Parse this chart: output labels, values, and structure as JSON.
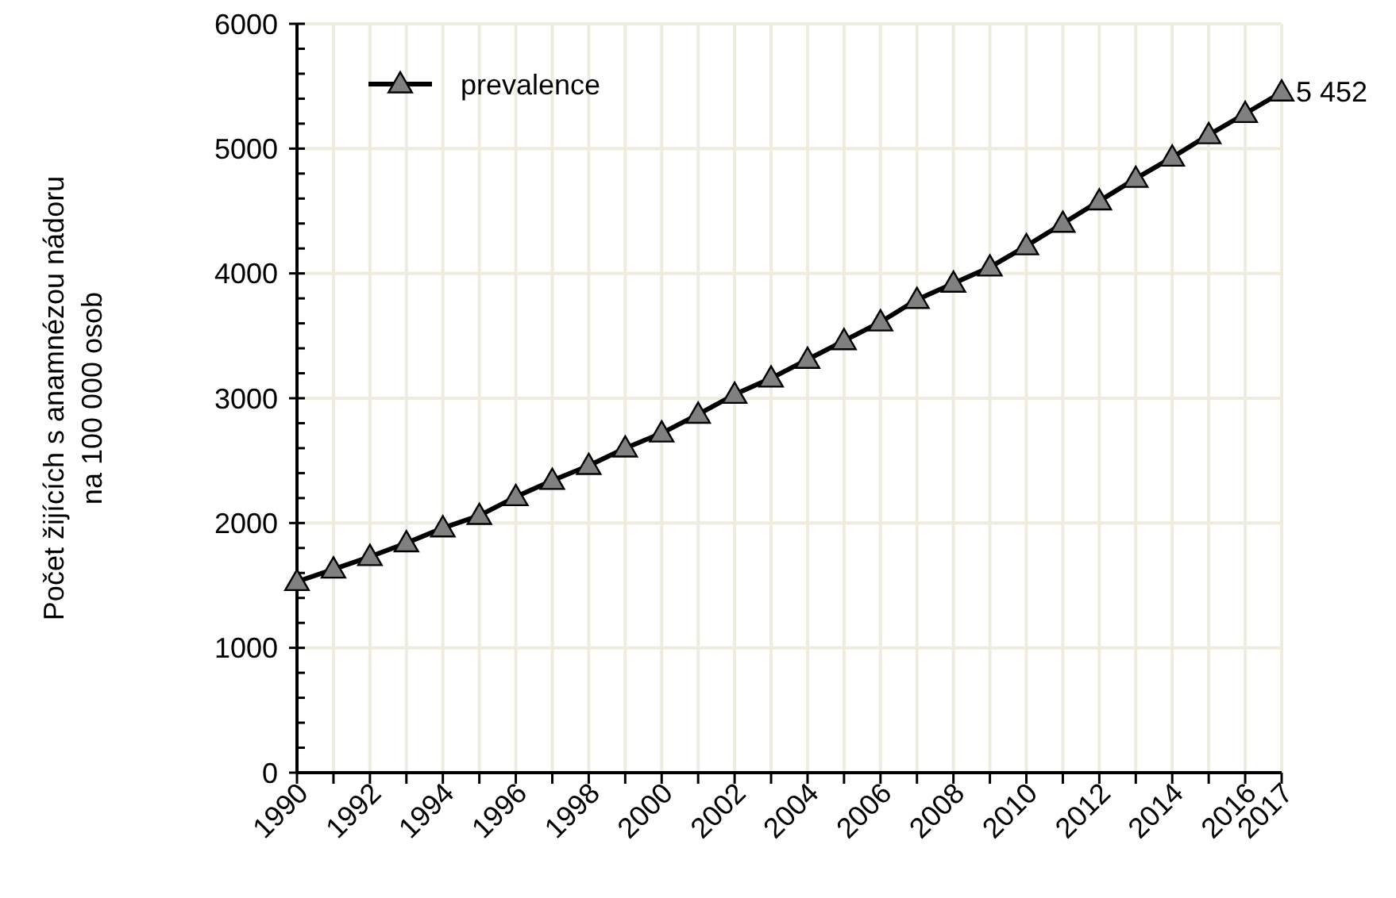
{
  "chart_data": {
    "type": "line",
    "ylabel": "Počet žijících s anamnézou nádoru\nna 100 000 osob",
    "x": [
      1990,
      1991,
      1992,
      1993,
      1994,
      1995,
      1996,
      1997,
      1998,
      1999,
      2000,
      2001,
      2002,
      2003,
      2004,
      2005,
      2006,
      2007,
      2008,
      2009,
      2010,
      2011,
      2012,
      2013,
      2014,
      2015,
      2016,
      2017
    ],
    "series": [
      {
        "name": "prevalence",
        "color": "#000000",
        "values": [
          1530,
          1630,
          1730,
          1840,
          1960,
          2060,
          2210,
          2340,
          2460,
          2600,
          2720,
          2870,
          3030,
          3160,
          3310,
          3460,
          3610,
          3790,
          3920,
          4050,
          4220,
          4400,
          4580,
          4760,
          4930,
          5110,
          5280,
          5452
        ],
        "value_labels": [
          null,
          null,
          null,
          null,
          null,
          null,
          null,
          null,
          null,
          null,
          null,
          null,
          null,
          null,
          null,
          null,
          null,
          null,
          null,
          null,
          null,
          null,
          null,
          null,
          null,
          null,
          null,
          "5 452"
        ]
      }
    ],
    "xlim": [
      1990,
      2017
    ],
    "xticks": [
      1990,
      {
        "value": 1991,
        "label": null
      },
      1992,
      {
        "value": 1993,
        "label": null
      },
      1994,
      {
        "value": 1995,
        "label": null
      },
      1996,
      {
        "value": 1997,
        "label": null
      },
      1998,
      {
        "value": 1999,
        "label": null
      },
      2000,
      {
        "value": 2001,
        "label": null
      },
      2002,
      {
        "value": 2003,
        "label": null
      },
      2004,
      {
        "value": 2005,
        "label": null
      },
      2006,
      {
        "value": 2007,
        "label": null
      },
      2008,
      {
        "value": 2009,
        "label": null
      },
      2010,
      {
        "value": 2011,
        "label": null
      },
      2012,
      {
        "value": 2013,
        "label": null
      },
      2014,
      {
        "value": 2015,
        "label": null
      },
      2016,
      2017
    ],
    "ylim": [
      0,
      6000
    ],
    "yticks": [
      0,
      1000,
      2000,
      3000,
      4000,
      5000,
      6000
    ],
    "grid": true,
    "legend": "top left",
    "marker": "triangle",
    "line_style": "solid"
  }
}
